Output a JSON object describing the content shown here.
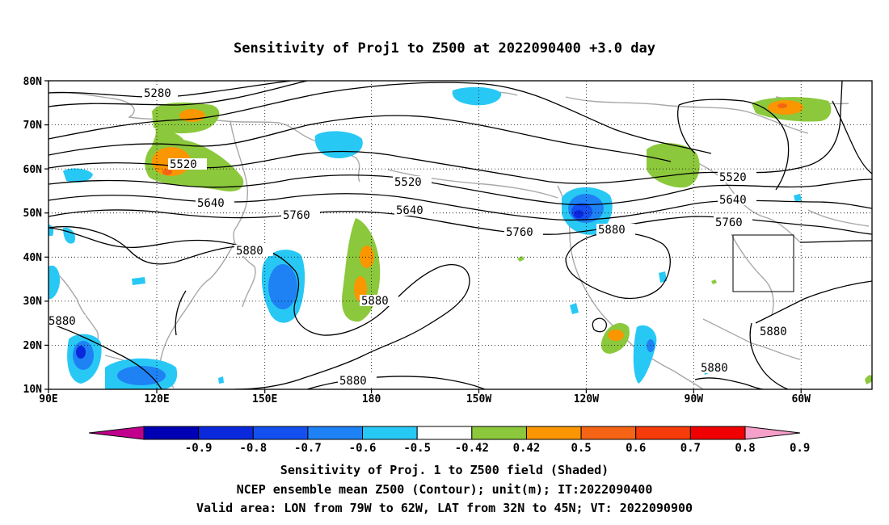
{
  "title": "Sensitivity of Proj1 to Z500 at 2022090400 +3.0 day",
  "lat_labels": [
    "80N",
    "70N",
    "60N",
    "50N",
    "40N",
    "30N",
    "20N",
    "10N"
  ],
  "lon_labels": [
    "90E",
    "120E",
    "150E",
    "180",
    "150W",
    "120W",
    "90W",
    "60W"
  ],
  "contour_labels": [
    "5280",
    "5520",
    "5640",
    "5760",
    "5880",
    "5520",
    "5640",
    "5760",
    "5880",
    "5520",
    "5640",
    "5760",
    "5880",
    "5880",
    "5880",
    "5880",
    "5880"
  ],
  "colorbar": {
    "labels": [
      "-0.9",
      "-0.8",
      "-0.7",
      "-0.6",
      "-0.5",
      "-0.42",
      "0.42",
      "0.5",
      "0.6",
      "0.7",
      "0.8",
      "0.9"
    ],
    "colors": [
      "#c0008c",
      "#0000b4",
      "#0a28dc",
      "#1450f0",
      "#1e82f5",
      "#28c8f5",
      "#ffffff",
      "#8cc83c",
      "#fa9600",
      "#f56414",
      "#f53c0a",
      "#f00000",
      "#f5a0c8"
    ]
  },
  "valid_area_box": {
    "lon_west": "79W",
    "lon_east": "62W",
    "lat_south": "32N",
    "lat_north": "45N"
  },
  "captions": [
    "Sensitivity of Proj. 1 to Z500 field (Shaded)",
    "NCEP ensemble mean Z500 (Contour); unit(m); IT:2022090400",
    "Valid area: LON from 79W to 62W, LAT from 32N to 45N; VT: 2022090900"
  ]
}
